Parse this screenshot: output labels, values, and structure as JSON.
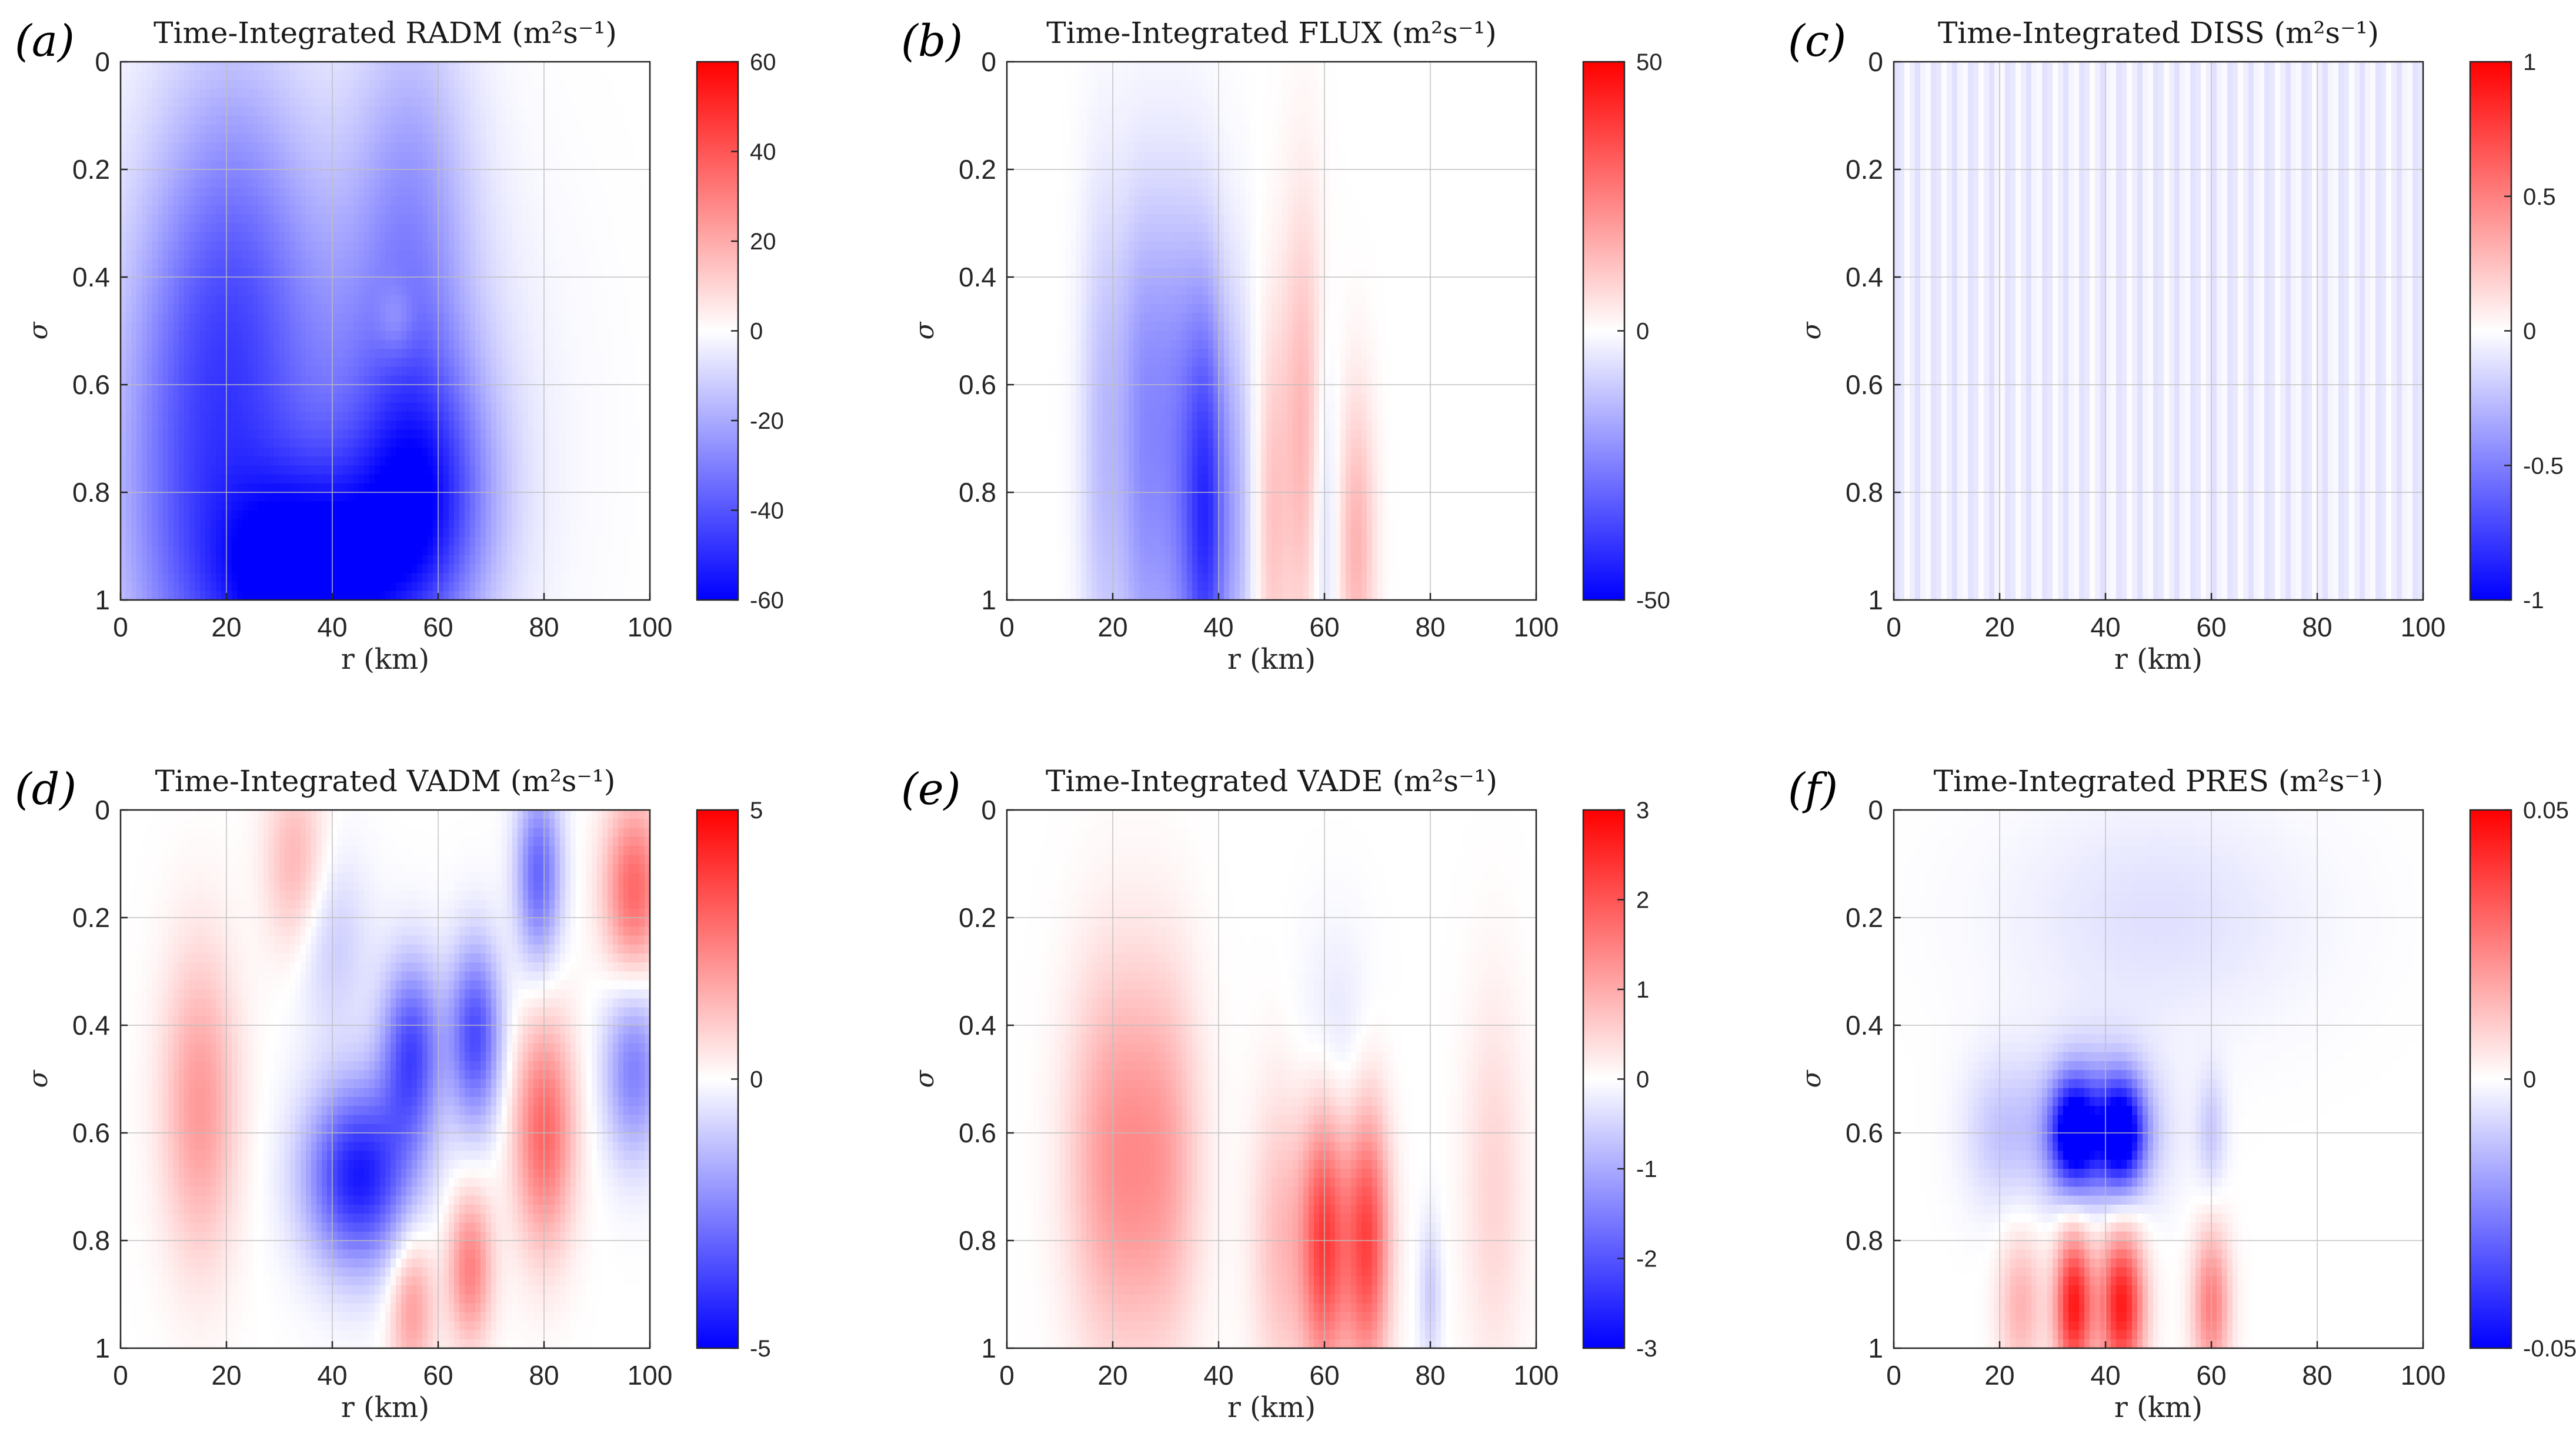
{
  "chart_data": [
    {
      "type": "heatmap",
      "panel_label": "(a)",
      "title": "Time-Integrated RADM (m²s⁻¹)",
      "xlabel": "r (km)",
      "ylabel": "σ",
      "xlim": [
        0,
        100
      ],
      "ylim": [
        0,
        1
      ],
      "y_reversed": true,
      "xticks": [
        "0",
        "20",
        "40",
        "60",
        "80",
        "100"
      ],
      "yticks": [
        "0",
        "0.2",
        "0.4",
        "0.6",
        "0.8",
        "1"
      ],
      "grid": true,
      "colorbar": {
        "ticks": [
          "60",
          "40",
          "20",
          "0",
          "-20",
          "-40",
          "-60"
        ],
        "range": [
          -60,
          60
        ],
        "colormap": "blue-white-red"
      },
      "features": [
        {
          "r": 35,
          "sigma": 0.97,
          "value": -55,
          "rw": 12,
          "sw": 0.14
        },
        {
          "r": 57,
          "sigma": 0.82,
          "value": -40,
          "rw": 9,
          "sw": 0.18
        },
        {
          "r": 22,
          "sigma": 0.45,
          "value": -25,
          "rw": 10,
          "sw": 0.35
        },
        {
          "r": 10,
          "sigma": 0.8,
          "value": -22,
          "rw": 10,
          "sw": 0.4
        },
        {
          "r": 55,
          "sigma": 0.3,
          "value": -20,
          "rw": 8,
          "sw": 0.3
        },
        {
          "r": 40,
          "sigma": 0.7,
          "value": -22,
          "rw": 20,
          "sw": 0.35
        },
        {
          "r": 52,
          "sigma": 0.48,
          "value": 10,
          "rw": 2.5,
          "sw": 0.05
        }
      ]
    },
    {
      "type": "heatmap",
      "panel_label": "(b)",
      "title": "Time-Integrated FLUX (m²s⁻¹)",
      "xlabel": "r (km)",
      "ylabel": "σ",
      "xlim": [
        0,
        100
      ],
      "ylim": [
        0,
        1
      ],
      "y_reversed": true,
      "xticks": [
        "0",
        "20",
        "40",
        "60",
        "80",
        "100"
      ],
      "yticks": [
        "0",
        "0.2",
        "0.4",
        "0.6",
        "0.8",
        "1"
      ],
      "grid": true,
      "colorbar": {
        "ticks": [
          "50",
          "0",
          "-50"
        ],
        "range": [
          -50,
          50
        ],
        "colormap": "blue-white-red"
      },
      "features": [
        {
          "r": 38,
          "sigma": 0.85,
          "value": -35,
          "rw": 3,
          "sw": 0.3
        },
        {
          "r": 32,
          "sigma": 0.8,
          "value": -20,
          "rw": 4,
          "sw": 0.35
        },
        {
          "r": 25,
          "sigma": 0.8,
          "value": -15,
          "rw": 3,
          "sw": 0.35
        },
        {
          "r": 18,
          "sigma": 0.75,
          "value": -12,
          "rw": 3,
          "sw": 0.35
        },
        {
          "r": 44,
          "sigma": 0.85,
          "value": -10,
          "rw": 2,
          "sw": 0.3
        },
        {
          "r": 56,
          "sigma": 0.7,
          "value": 15,
          "rw": 3,
          "sw": 0.3
        },
        {
          "r": 66,
          "sigma": 0.9,
          "value": 15,
          "rw": 2.5,
          "sw": 0.2
        },
        {
          "r": 50,
          "sigma": 0.85,
          "value": 10,
          "rw": 2,
          "sw": 0.25
        },
        {
          "r": 60,
          "sigma": 0.85,
          "value": -10,
          "rw": 2,
          "sw": 0.25
        },
        {
          "r": 28,
          "sigma": 0.5,
          "value": -6,
          "rw": 6,
          "sw": 0.2
        }
      ]
    },
    {
      "type": "heatmap",
      "panel_label": "(c)",
      "title": "Time-Integrated DISS (m²s⁻¹)",
      "xlabel": "r (km)",
      "ylabel": "σ",
      "xlim": [
        0,
        100
      ],
      "ylim": [
        0,
        1
      ],
      "y_reversed": true,
      "xticks": [
        "0",
        "20",
        "40",
        "60",
        "80",
        "100"
      ],
      "yticks": [
        "0",
        "0.2",
        "0.4",
        "0.6",
        "0.8",
        "1"
      ],
      "grid": true,
      "colorbar": {
        "ticks": [
          "1",
          "0.5",
          "0",
          "-0.5",
          "-1"
        ],
        "range": [
          -1,
          1
        ],
        "colormap": "blue-white-red"
      },
      "stripes": {
        "period_km": 3.5,
        "value": -0.12
      },
      "features": []
    },
    {
      "type": "heatmap",
      "panel_label": "(d)",
      "title": "Time-Integrated VADM (m²s⁻¹)",
      "xlabel": "r (km)",
      "ylabel": "σ",
      "xlim": [
        0,
        100
      ],
      "ylim": [
        0,
        1
      ],
      "y_reversed": true,
      "xticks": [
        "0",
        "20",
        "40",
        "60",
        "80",
        "100"
      ],
      "yticks": [
        "0",
        "0.2",
        "0.4",
        "0.6",
        "0.8",
        "1"
      ],
      "grid": true,
      "colorbar": {
        "ticks": [
          "5",
          "0",
          "-5"
        ],
        "range": [
          -5,
          5
        ],
        "colormap": "blue-white-red"
      },
      "features": [
        {
          "r": 45,
          "sigma": 0.68,
          "value": -4.5,
          "rw": 7,
          "sw": 0.12
        },
        {
          "r": 55,
          "sigma": 0.45,
          "value": -3.5,
          "rw": 4,
          "sw": 0.12
        },
        {
          "r": 67,
          "sigma": 0.42,
          "value": -3.5,
          "rw": 3.5,
          "sw": 0.12
        },
        {
          "r": 79,
          "sigma": 0.12,
          "value": -3,
          "rw": 3,
          "sw": 0.12
        },
        {
          "r": 97,
          "sigma": 0.48,
          "value": -2.5,
          "rw": 4,
          "sw": 0.12
        },
        {
          "r": 15,
          "sigma": 0.55,
          "value": 2,
          "rw": 5,
          "sw": 0.2
        },
        {
          "r": 33,
          "sigma": 0.1,
          "value": 1.5,
          "rw": 4,
          "sw": 0.12
        },
        {
          "r": 80,
          "sigma": 0.6,
          "value": 3,
          "rw": 4,
          "sw": 0.15
        },
        {
          "r": 66,
          "sigma": 0.85,
          "value": 2.5,
          "rw": 3,
          "sw": 0.1
        },
        {
          "r": 55,
          "sigma": 0.92,
          "value": 2,
          "rw": 3,
          "sw": 0.1
        },
        {
          "r": 97,
          "sigma": 0.15,
          "value": 3,
          "rw": 4,
          "sw": 0.12
        },
        {
          "r": 40,
          "sigma": 0.25,
          "value": -1,
          "rw": 5,
          "sw": 0.12
        }
      ]
    },
    {
      "type": "heatmap",
      "panel_label": "(e)",
      "title": "Time-Integrated VADE (m²s⁻¹)",
      "xlabel": "r (km)",
      "ylabel": "σ",
      "xlim": [
        0,
        100
      ],
      "ylim": [
        0,
        1
      ],
      "y_reversed": true,
      "xticks": [
        "0",
        "20",
        "40",
        "60",
        "80",
        "100"
      ],
      "yticks": [
        "0",
        "0.2",
        "0.4",
        "0.6",
        "0.8",
        "1"
      ],
      "grid": true,
      "colorbar": {
        "ticks": [
          "3",
          "2",
          "1",
          "0",
          "-1",
          "-2",
          "-3"
        ],
        "range": [
          -3,
          3
        ],
        "colormap": "blue-white-red"
      },
      "features": [
        {
          "r": 60,
          "sigma": 0.8,
          "value": 2.2,
          "rw": 3,
          "sw": 0.18
        },
        {
          "r": 68,
          "sigma": 0.8,
          "value": 2.2,
          "rw": 3,
          "sw": 0.18
        },
        {
          "r": 20,
          "sigma": 0.65,
          "value": 1.2,
          "rw": 6,
          "sw": 0.25
        },
        {
          "r": 30,
          "sigma": 0.65,
          "value": 0.9,
          "rw": 5,
          "sw": 0.25
        },
        {
          "r": 52,
          "sigma": 0.8,
          "value": 0.8,
          "rw": 4,
          "sw": 0.2
        },
        {
          "r": 92,
          "sigma": 0.7,
          "value": 0.5,
          "rw": 4,
          "sw": 0.25
        },
        {
          "r": 80,
          "sigma": 0.9,
          "value": -0.6,
          "rw": 1.5,
          "sw": 0.1
        },
        {
          "r": 62,
          "sigma": 0.45,
          "value": -0.4,
          "rw": 5,
          "sw": 0.15
        }
      ]
    },
    {
      "type": "heatmap",
      "panel_label": "(f)",
      "title": "Time-Integrated PRES (m²s⁻¹)",
      "xlabel": "r (km)",
      "ylabel": "σ",
      "xlim": [
        0,
        100
      ],
      "ylim": [
        0,
        1
      ],
      "y_reversed": true,
      "xticks": [
        "0",
        "20",
        "40",
        "60",
        "80",
        "100"
      ],
      "yticks": [
        "0",
        "0.2",
        "0.4",
        "0.6",
        "0.8",
        "1"
      ],
      "grid": true,
      "colorbar": {
        "ticks": [
          "0.05",
          "0",
          "-0.05"
        ],
        "range": [
          -0.05,
          0.05
        ],
        "colormap": "blue-white-red"
      },
      "features": [
        {
          "r": 34,
          "sigma": 0.6,
          "value": -0.045,
          "rw": 3,
          "sw": 0.07
        },
        {
          "r": 43,
          "sigma": 0.6,
          "value": -0.045,
          "rw": 3,
          "sw": 0.07
        },
        {
          "r": 38,
          "sigma": 0.6,
          "value": -0.025,
          "rw": 8,
          "sw": 0.1
        },
        {
          "r": 20,
          "sigma": 0.6,
          "value": -0.01,
          "rw": 5,
          "sw": 0.1
        },
        {
          "r": 34,
          "sigma": 0.92,
          "value": 0.045,
          "rw": 2.5,
          "sw": 0.1
        },
        {
          "r": 43,
          "sigma": 0.92,
          "value": 0.045,
          "rw": 3,
          "sw": 0.1
        },
        {
          "r": 60,
          "sigma": 0.92,
          "value": 0.025,
          "rw": 2.5,
          "sw": 0.1
        },
        {
          "r": 24,
          "sigma": 0.92,
          "value": 0.015,
          "rw": 3,
          "sw": 0.1
        },
        {
          "r": 50,
          "sigma": 0.2,
          "value": -0.006,
          "rw": 20,
          "sw": 0.15
        },
        {
          "r": 60,
          "sigma": 0.6,
          "value": -0.01,
          "rw": 2,
          "sw": 0.08
        }
      ]
    }
  ]
}
